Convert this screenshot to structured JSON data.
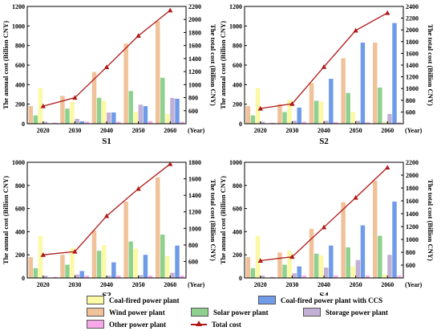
{
  "legend": {
    "coal": "Coal-fired power plant",
    "ccs": "Coal-fired power plant with CCS",
    "wind": "Wind power plant",
    "solar": "Solar power plant",
    "storage": "Storage power plant",
    "other": "Other power plant",
    "total": "Total cost"
  },
  "colors": {
    "coal": "#fbf8a6",
    "ccs": "#6f9be8",
    "wind": "#f1c199",
    "solar": "#8ed18e",
    "storage": "#c1b0d4",
    "other": "#f7a8e9",
    "total": "#b01717"
  },
  "chart_data": [
    {
      "type": "bar",
      "title": "S1",
      "xlabel": "(Year)",
      "ylabel": "The annual cost (Billion CNY)",
      "y2label": "The total cost (Billion CNY)",
      "categories": [
        "2020",
        "2030",
        "2040",
        "2050",
        "2060"
      ],
      "ylim": [
        0,
        1200
      ],
      "yticks": [
        0,
        200,
        400,
        600,
        800,
        1000,
        1200
      ],
      "y2lim": [
        400,
        2200
      ],
      "y2ticks": [
        600,
        800,
        1000,
        1200,
        1400,
        1600,
        1800,
        2000,
        2200
      ],
      "series": [
        {
          "name": "Wind power plant",
          "key": "wind",
          "values": [
            180,
            285,
            530,
            820,
            1050
          ]
        },
        {
          "name": "Solar power plant",
          "key": "solar",
          "values": [
            85,
            155,
            265,
            335,
            470
          ]
        },
        {
          "name": "Coal-fired power plant",
          "key": "coal",
          "values": [
            365,
            225,
            235,
            120,
            100
          ]
        },
        {
          "name": "Storage power plant",
          "key": "storage",
          "values": [
            20,
            50,
            115,
            195,
            265
          ]
        },
        {
          "name": "Coal-fired power plant with CCS",
          "key": "ccs",
          "values": [
            0,
            25,
            115,
            180,
            255
          ]
        },
        {
          "name": "Other power plant",
          "key": "other",
          "values": [
            10,
            20,
            20,
            25,
            20
          ]
        }
      ],
      "line": {
        "name": "Total cost",
        "values": [
          670,
          800,
          1270,
          1750,
          2140
        ]
      }
    },
    {
      "type": "bar",
      "title": "S2",
      "xlabel": "(Year)",
      "ylabel": "The annual cost (Billion CNY)",
      "y2label": "The total cost (Billion CNY)",
      "categories": [
        "2020",
        "2030",
        "2040",
        "2050",
        "2060"
      ],
      "ylim": [
        0,
        1200
      ],
      "yticks": [
        0,
        200,
        400,
        600,
        800,
        1000,
        1200
      ],
      "y2lim": [
        400,
        2400
      ],
      "y2ticks": [
        600,
        800,
        1000,
        1200,
        1400,
        1600,
        1800,
        2000,
        2200,
        2400
      ],
      "series": [
        {
          "name": "Wind power plant",
          "key": "wind",
          "values": [
            180,
            200,
            415,
            670,
            830
          ]
        },
        {
          "name": "Solar power plant",
          "key": "solar",
          "values": [
            85,
            120,
            235,
            315,
            370
          ]
        },
        {
          "name": "Coal-fired power plant",
          "key": "coal",
          "values": [
            365,
            245,
            225,
            120,
            20
          ]
        },
        {
          "name": "Storage power plant",
          "key": "storage",
          "values": [
            20,
            30,
            30,
            30,
            100
          ]
        },
        {
          "name": "Coal-fired power plant with CCS",
          "key": "ccs",
          "values": [
            0,
            165,
            460,
            830,
            1030
          ]
        },
        {
          "name": "Other power plant",
          "key": "other",
          "values": [
            10,
            20,
            15,
            15,
            15
          ]
        }
      ],
      "line": {
        "name": "Total cost",
        "values": [
          660,
          740,
          1370,
          1990,
          2290
        ]
      }
    },
    {
      "type": "bar",
      "title": "S3",
      "xlabel": "(Year)",
      "ylabel": "The annual cost (Billion CNY)",
      "y2label": "The total cost (Billion CNY)",
      "categories": [
        "2020",
        "2030",
        "2040",
        "2050",
        "2060"
      ],
      "ylim": [
        0,
        1000
      ],
      "yticks": [
        0,
        200,
        400,
        600,
        800,
        1000
      ],
      "y2lim": [
        400,
        1800
      ],
      "y2ticks": [
        600,
        800,
        1000,
        1200,
        1400,
        1600,
        1800
      ],
      "series": [
        {
          "name": "Wind power plant",
          "key": "wind",
          "values": [
            180,
            200,
            410,
            660,
            870
          ]
        },
        {
          "name": "Solar power plant",
          "key": "solar",
          "values": [
            85,
            115,
            235,
            315,
            375
          ]
        },
        {
          "name": "Coal-fired power plant",
          "key": "coal",
          "values": [
            365,
            260,
            285,
            255,
            190
          ]
        },
        {
          "name": "Storage power plant",
          "key": "storage",
          "values": [
            20,
            30,
            20,
            25,
            45
          ]
        },
        {
          "name": "Coal-fired power plant with CCS",
          "key": "ccs",
          "values": [
            0,
            60,
            135,
            200,
            280
          ]
        },
        {
          "name": "Other power plant",
          "key": "other",
          "values": [
            10,
            20,
            20,
            20,
            20
          ]
        }
      ],
      "line": {
        "name": "Total cost",
        "values": [
          680,
          720,
          1150,
          1480,
          1780
        ]
      }
    },
    {
      "type": "bar",
      "title": "S4",
      "xlabel": "(Year)",
      "ylabel": "The annual cost (Billion CNY)",
      "y2label": "The total cost (Billion CNY)",
      "categories": [
        "2020",
        "2030",
        "2040",
        "2050",
        "2060"
      ],
      "ylim": [
        0,
        1000
      ],
      "yticks": [
        0,
        200,
        400,
        600,
        800,
        1000
      ],
      "y2lim": [
        400,
        2200
      ],
      "y2ticks": [
        600,
        800,
        1000,
        1200,
        1400,
        1600,
        1800,
        2000,
        2200
      ],
      "series": [
        {
          "name": "Wind power plant",
          "key": "wind",
          "values": [
            180,
            220,
            425,
            655,
            840
          ]
        },
        {
          "name": "Solar power plant",
          "key": "solar",
          "values": [
            85,
            115,
            210,
            265,
            365
          ]
        },
        {
          "name": "Coal-fired power plant",
          "key": "coal",
          "values": [
            365,
            235,
            195,
            100,
            30
          ]
        },
        {
          "name": "Storage power plant",
          "key": "storage",
          "values": [
            20,
            40,
            90,
            155,
            200
          ]
        },
        {
          "name": "Coal-fired power plant with CCS",
          "key": "ccs",
          "values": [
            0,
            100,
            280,
            455,
            660
          ]
        },
        {
          "name": "Other power plant",
          "key": "other",
          "values": [
            10,
            20,
            20,
            20,
            20
          ]
        }
      ],
      "line": {
        "name": "Total cost",
        "values": [
          670,
          730,
          1190,
          1650,
          2120
        ]
      }
    }
  ]
}
